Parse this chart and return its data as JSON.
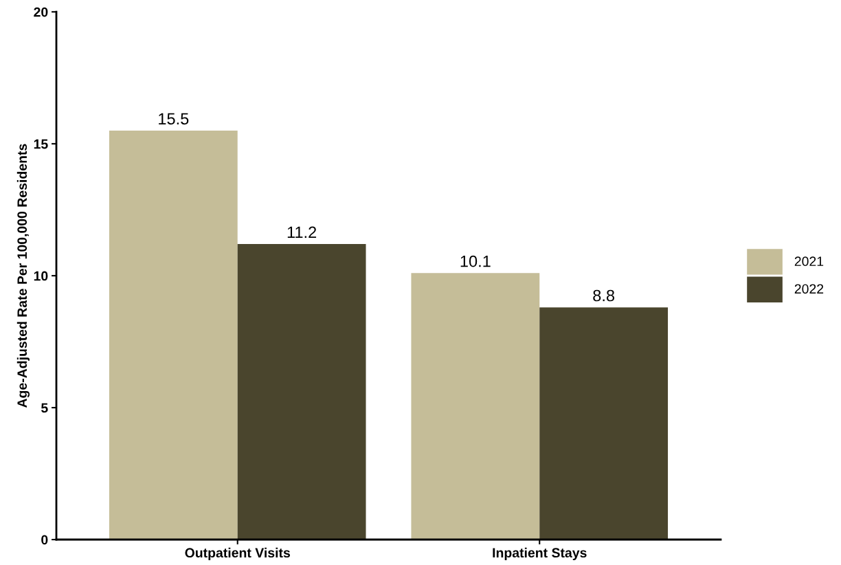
{
  "chart_data": {
    "type": "bar",
    "ylabel": "Age-Adjusted Rate Per 100,000 Residents",
    "categories": [
      "Outpatient Visits",
      "Inpatient Stays"
    ],
    "series": [
      {
        "name": "2021",
        "color": "#c5bd98",
        "values": [
          15.5,
          10.1
        ]
      },
      {
        "name": "2022",
        "color": "#4a452d",
        "values": [
          11.2,
          8.8
        ]
      }
    ],
    "ylim": [
      0,
      20
    ],
    "yticks": [
      0,
      5,
      10,
      15,
      20
    ],
    "data_labels": true,
    "legend": "right",
    "grid": false
  }
}
